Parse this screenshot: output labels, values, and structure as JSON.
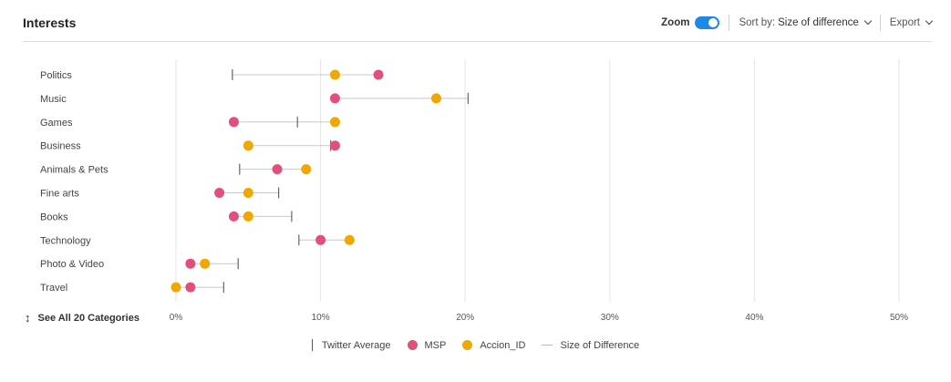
{
  "header": {
    "title": "Interests",
    "zoom_label": "Zoom",
    "sort_label": "Sort by:",
    "sort_value": "Size of difference",
    "export_label": "Export"
  },
  "see_all": {
    "arrow": "↕",
    "label": "See All 20 Categories"
  },
  "legend": {
    "twitter_average": "Twitter Average",
    "msp": "MSP",
    "accion": "Accion_ID",
    "size_of_difference": "Size of Difference"
  },
  "colors": {
    "msp": "#e0507a",
    "accion": "#f0a800",
    "line": "#c8c8c8",
    "marker": "#666666",
    "grid": "#e6e6e6"
  },
  "chart_data": {
    "type": "scatter",
    "xlim": [
      0,
      50
    ],
    "xticks": [
      0,
      10,
      20,
      30,
      40,
      50
    ],
    "xtick_labels": [
      "0%",
      "10%",
      "20%",
      "30%",
      "40%",
      "50%"
    ],
    "grid": true,
    "legend_position": "bottom",
    "categories": [
      "Politics",
      "Music",
      "Games",
      "Business",
      "Animals & Pets",
      "Fine arts",
      "Books",
      "Technology",
      "Photo & Video",
      "Travel"
    ],
    "series": [
      {
        "name": "MSP",
        "values": [
          14,
          11,
          4,
          11,
          7,
          3,
          4,
          10,
          1,
          1
        ]
      },
      {
        "name": "Accion_ID",
        "values": [
          11,
          18,
          11,
          5,
          9,
          5,
          5,
          12,
          2,
          0
        ]
      },
      {
        "name": "Twitter Average",
        "values": [
          3.9,
          20.2,
          8.4,
          10.7,
          4.4,
          7.1,
          8.0,
          8.5,
          4.3,
          3.3
        ]
      }
    ]
  }
}
